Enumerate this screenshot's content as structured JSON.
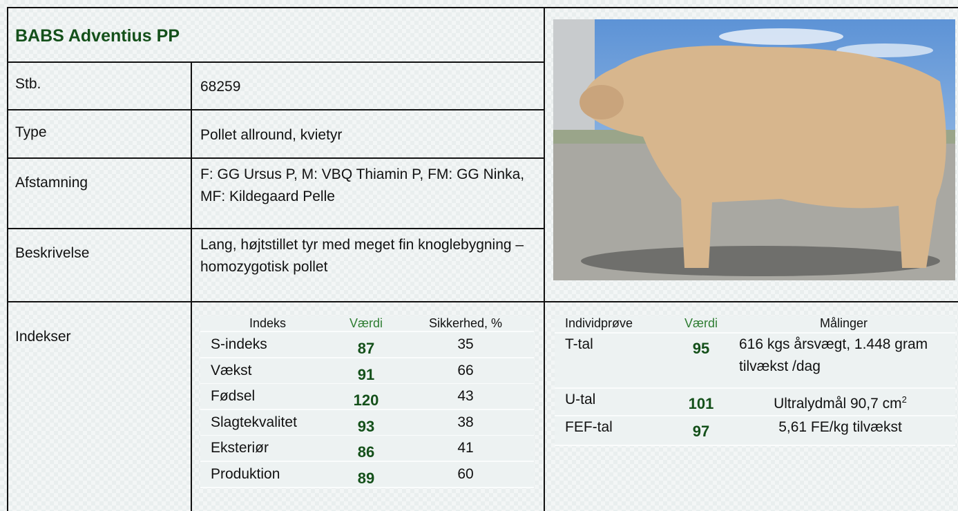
{
  "title": "BABS Adventius PP",
  "rows": [
    [
      "Stb.",
      "68259"
    ],
    [
      "Type",
      "Pollet allround, kvietyr"
    ],
    [
      "Afstamning",
      "F: GG Ursus P, M: VBQ Thiamin P, FM: GG Ninka, MF: Kildegaard Pelle"
    ],
    [
      "Beskrivelse",
      "Lang, højtstillet tyr med meget fin knoglebygning – homozygotisk pollet"
    ]
  ],
  "indekser": {
    "label": "Indekser",
    "header": [
      "Indeks",
      "Værdi",
      "Sikkerhed, %"
    ],
    "rows": [
      [
        "S-indeks",
        87,
        35
      ],
      [
        "Vækst",
        91,
        66
      ],
      [
        "Fødsel",
        120,
        43
      ],
      [
        "Slagtekvalitet",
        93,
        38
      ],
      [
        "Eksteriør",
        86,
        41
      ],
      [
        "Produktion",
        89,
        60
      ]
    ]
  },
  "individ": {
    "header": [
      "Individprøve",
      "Værdi",
      "Målinger"
    ],
    "rows": [
      {
        "name": "T-tal",
        "value": 95,
        "measure": "616 kgs årsvægt, 1.448 gram tilvækst /dag"
      },
      {
        "name": "U-tal",
        "value": 101,
        "measure": "Ultralydmål 90,7 cm",
        "sup": "2"
      },
      {
        "name": "FEF-tal",
        "value": 97,
        "measure": "5,61 FE/kg tilvækst"
      }
    ]
  }
}
